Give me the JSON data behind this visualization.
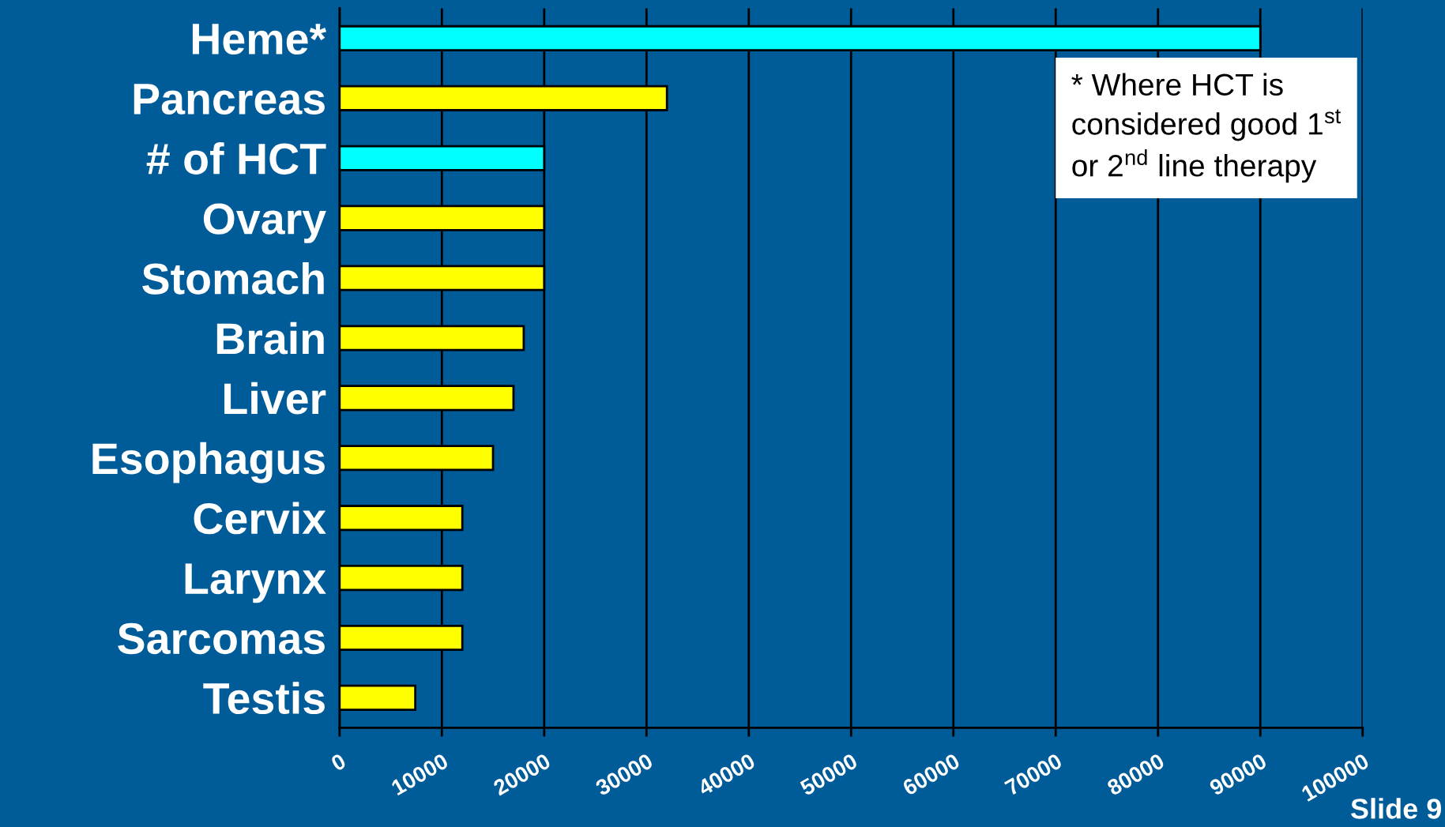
{
  "chart_data": {
    "type": "bar",
    "orientation": "horizontal",
    "categories": [
      "Heme*",
      "Pancreas",
      "# of HCT",
      "Ovary",
      "Stomach",
      "Brain",
      "Liver",
      "Esophagus",
      "Cervix",
      "Larynx",
      "Sarcomas",
      "Testis"
    ],
    "values": [
      90000,
      32000,
      20000,
      20000,
      20000,
      18000,
      17000,
      15000,
      12000,
      12000,
      12000,
      7400
    ],
    "colors": [
      "#00ffff",
      "#ffff00",
      "#00ffff",
      "#ffff00",
      "#ffff00",
      "#ffff00",
      "#ffff00",
      "#ffff00",
      "#ffff00",
      "#ffff00",
      "#ffff00",
      "#ffff00"
    ],
    "xlim": [
      0,
      100000
    ],
    "xticks": [
      0,
      10000,
      20000,
      30000,
      40000,
      50000,
      60000,
      70000,
      80000,
      90000,
      100000
    ],
    "grid": "x",
    "annotations": [
      "* Where HCT is\nconsidered good 1$^{st}$\nor 2$^{nd}$ line therapy",
      "Slide 9"
    ]
  }
}
